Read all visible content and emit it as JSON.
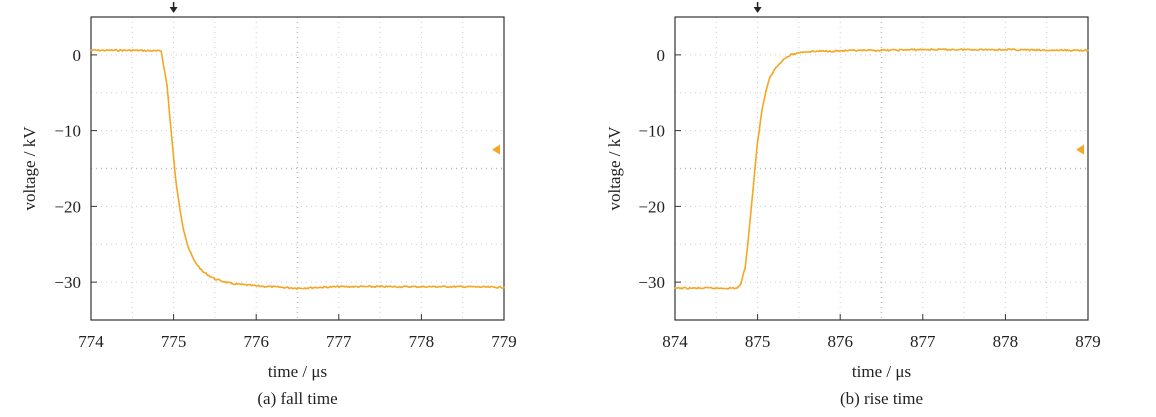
{
  "chart_data": [
    {
      "type": "line",
      "caption": "(a) fall time",
      "xlabel": "time / μs",
      "ylabel": "voltage / kV",
      "xlim": [
        774,
        779
      ],
      "ylim": [
        -35,
        5
      ],
      "xticks": [
        "774",
        "775",
        "776",
        "777",
        "778",
        "779"
      ],
      "yticks": [
        "0",
        "−10",
        "−20",
        "−30"
      ],
      "grid": true,
      "trigger_marker_x": 775.0,
      "level_marker_y": -12.5,
      "line_color": "#f5a623",
      "series": [
        {
          "x": [
            774.0,
            774.5,
            774.85,
            774.92,
            774.97,
            775.02,
            775.07,
            775.12,
            775.18,
            775.25,
            775.35,
            775.5,
            775.7,
            776.0,
            776.5,
            777.0,
            777.5,
            778.0,
            778.5,
            779.0
          ],
          "values": [
            0.6,
            0.6,
            0.5,
            -4,
            -10,
            -16,
            -20,
            -23,
            -25.5,
            -27.2,
            -28.6,
            -29.6,
            -30.2,
            -30.5,
            -30.8,
            -30.6,
            -30.6,
            -30.6,
            -30.6,
            -30.7
          ]
        }
      ]
    },
    {
      "type": "line",
      "caption": "(b) rise time",
      "xlabel": "time / μs",
      "ylabel": "voltage / kV",
      "xlim": [
        874,
        879
      ],
      "ylim": [
        -35,
        5
      ],
      "xticks": [
        "874",
        "875",
        "876",
        "877",
        "878",
        "879"
      ],
      "yticks": [
        "0",
        "−10",
        "−20",
        "−30"
      ],
      "grid": true,
      "trigger_marker_x": 875.0,
      "level_marker_y": -12.5,
      "line_color": "#f5a623",
      "series": [
        {
          "x": [
            874.0,
            874.5,
            874.75,
            874.8,
            874.85,
            874.9,
            874.95,
            875.0,
            875.05,
            875.1,
            875.15,
            875.22,
            875.3,
            875.4,
            875.55,
            875.8,
            876.5,
            877.0,
            877.5,
            878.0,
            878.5,
            879.0
          ],
          "values": [
            -30.8,
            -30.8,
            -30.8,
            -30.2,
            -28,
            -23,
            -17,
            -11.5,
            -7.5,
            -4.8,
            -3,
            -1.7,
            -0.7,
            0,
            0.4,
            0.5,
            0.6,
            0.7,
            0.7,
            0.7,
            0.6,
            0.6
          ]
        }
      ]
    }
  ]
}
